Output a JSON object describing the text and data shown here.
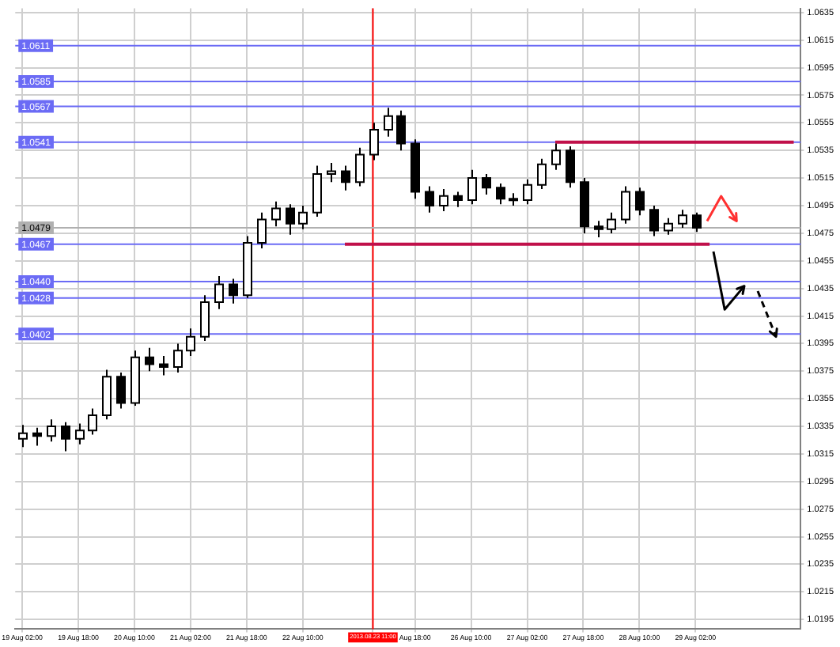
{
  "chart_data": {
    "type": "candlestick",
    "categories": [
      "19 Aug 02:00",
      null,
      null,
      null,
      "19 Aug 18:00",
      null,
      null,
      null,
      "20 Aug 10:00",
      null,
      null,
      null,
      "21 Aug 02:00",
      null,
      null,
      null,
      "21 Aug 18:00",
      null,
      null,
      null,
      "22 Aug 10:00",
      null,
      null,
      null,
      null,
      "2013.08.23 11:00",
      null,
      null,
      "Aug 18:00",
      null,
      null,
      null,
      "26 Aug 10:00",
      null,
      null,
      null,
      "27 Aug 02:00",
      null,
      null,
      null,
      "27 Aug 18:00",
      null,
      null,
      null,
      "28 Aug 10:00",
      null,
      null,
      null,
      "29 Aug 02:00",
      null,
      null,
      null,
      null,
      null,
      null,
      null
    ],
    "ohlc": [
      [
        1.0326,
        1.0336,
        1.032,
        1.033
      ],
      [
        1.033,
        1.0334,
        1.0321,
        1.0328
      ],
      [
        1.0328,
        1.034,
        1.0324,
        1.0335
      ],
      [
        1.0335,
        1.0338,
        1.0317,
        1.0326
      ],
      [
        1.0326,
        1.0337,
        1.0322,
        1.0332
      ],
      [
        1.0332,
        1.0348,
        1.0329,
        1.0343
      ],
      [
        1.0343,
        1.0376,
        1.034,
        1.0371
      ],
      [
        1.0371,
        1.0374,
        1.0348,
        1.0352
      ],
      [
        1.0352,
        1.039,
        1.035,
        1.0385
      ],
      [
        1.0385,
        1.0392,
        1.0375,
        1.038
      ],
      [
        1.038,
        1.0386,
        1.0372,
        1.0378
      ],
      [
        1.0378,
        1.0395,
        1.0374,
        1.039
      ],
      [
        1.039,
        1.0406,
        1.0386,
        1.04
      ],
      [
        1.04,
        1.043,
        1.0397,
        1.0425
      ],
      [
        1.0425,
        1.0444,
        1.042,
        1.0438
      ],
      [
        1.0438,
        1.0442,
        1.0424,
        1.043
      ],
      [
        1.043,
        1.0473,
        1.0428,
        1.0468
      ],
      [
        1.0468,
        1.049,
        1.0464,
        1.0485
      ],
      [
        1.0485,
        1.0498,
        1.048,
        1.0493
      ],
      [
        1.0493,
        1.0496,
        1.0474,
        1.0482
      ],
      [
        1.0482,
        1.0495,
        1.0478,
        1.049
      ],
      [
        1.049,
        1.0524,
        1.0487,
        1.0518
      ],
      [
        1.0518,
        1.0526,
        1.0512,
        1.052
      ],
      [
        1.052,
        1.0524,
        1.0506,
        1.0512
      ],
      [
        1.0512,
        1.0537,
        1.0509,
        1.0532
      ],
      [
        1.0532,
        1.0555,
        1.0528,
        1.055
      ],
      [
        1.055,
        1.0566,
        1.0545,
        1.056
      ],
      [
        1.056,
        1.0564,
        1.0535,
        1.054
      ],
      [
        1.054,
        1.0543,
        1.05,
        1.0505
      ],
      [
        1.0505,
        1.0509,
        1.049,
        1.0495
      ],
      [
        1.0495,
        1.0507,
        1.0491,
        1.0502
      ],
      [
        1.0502,
        1.0505,
        1.0494,
        1.0499
      ],
      [
        1.0499,
        1.0521,
        1.0496,
        1.0515
      ],
      [
        1.0515,
        1.0518,
        1.0503,
        1.0508
      ],
      [
        1.0508,
        1.0511,
        1.0496,
        1.05
      ],
      [
        1.05,
        1.0504,
        1.0495,
        1.0499
      ],
      [
        1.0499,
        1.0514,
        1.0496,
        1.051
      ],
      [
        1.051,
        1.0529,
        1.0507,
        1.0525
      ],
      [
        1.0525,
        1.054,
        1.0521,
        1.0535
      ],
      [
        1.0535,
        1.0538,
        1.0508,
        1.0512
      ],
      [
        1.0512,
        1.0515,
        1.0475,
        1.048
      ],
      [
        1.048,
        1.0484,
        1.0472,
        1.0478
      ],
      [
        1.0478,
        1.049,
        1.0475,
        1.0485
      ],
      [
        1.0485,
        1.0509,
        1.0482,
        1.0505
      ],
      [
        1.0505,
        1.0508,
        1.0488,
        1.0492
      ],
      [
        1.0492,
        1.0495,
        1.0473,
        1.0477
      ],
      [
        1.0477,
        1.0486,
        1.0474,
        1.0482
      ],
      [
        1.0482,
        1.0492,
        1.0479,
        1.0488
      ],
      [
        1.0488,
        1.049,
        1.0476,
        1.0479
      ],
      null,
      null,
      null,
      null,
      null,
      null,
      null
    ],
    "ylim": [
      1.0188,
      1.0638
    ],
    "yticks": [
      1.0195,
      1.0215,
      1.0235,
      1.0255,
      1.0275,
      1.0295,
      1.0315,
      1.0335,
      1.0355,
      1.0375,
      1.0395,
      1.0415,
      1.0435,
      1.0455,
      1.0475,
      1.0495,
      1.0515,
      1.0535,
      1.0555,
      1.0575,
      1.0595,
      1.0615,
      1.0635
    ],
    "grid": true,
    "ref_lines": [
      {
        "axis": "x",
        "value": "2013.08.23 11:00",
        "color": "#ff0000"
      },
      {
        "axis": "y",
        "value": 1.0611,
        "label": "1.0611",
        "color": "#6b6bf5"
      },
      {
        "axis": "y",
        "value": 1.0585,
        "label": "1.0585",
        "color": "#6b6bf5"
      },
      {
        "axis": "y",
        "value": 1.0567,
        "label": "1.0567",
        "color": "#6b6bf5"
      },
      {
        "axis": "y",
        "value": 1.0541,
        "label": "1.0541",
        "color": "#6b6bf5"
      },
      {
        "axis": "y",
        "value": 1.0479,
        "label": "1.0479",
        "color": "#b0b0b0"
      },
      {
        "axis": "y",
        "value": 1.0467,
        "label": "1.0467",
        "color": "#6b6bf5"
      },
      {
        "axis": "y",
        "value": 1.044,
        "label": "1.0440",
        "color": "#6b6bf5"
      },
      {
        "axis": "y",
        "value": 1.0428,
        "label": "1.0428",
        "color": "#6b6bf5"
      },
      {
        "axis": "y",
        "value": 1.0402,
        "label": "1.0402",
        "color": "#6b6bf5"
      }
    ],
    "series": [
      {
        "type": "line",
        "color": "#c0104a",
        "values": [
          null,
          null,
          null,
          null,
          null,
          null,
          null,
          null,
          null,
          null,
          null,
          null,
          null,
          null,
          null,
          null,
          null,
          null,
          null,
          null,
          null,
          null,
          null,
          null,
          null,
          null,
          null,
          null,
          null,
          null,
          null,
          null,
          null,
          null,
          null,
          null,
          null,
          null,
          1.0541,
          1.0541,
          1.0541,
          1.0541,
          1.0541,
          1.0541,
          1.0541,
          1.0541,
          1.0541,
          1.0541,
          1.0541,
          1.0541,
          1.0541,
          1.0541,
          1.0541,
          1.0541,
          1.0541,
          1.0541
        ]
      },
      {
        "type": "line",
        "color": "#c0104a",
        "values": [
          null,
          null,
          null,
          null,
          null,
          null,
          null,
          null,
          null,
          null,
          null,
          null,
          null,
          null,
          null,
          null,
          null,
          null,
          null,
          null,
          null,
          null,
          null,
          1.0467,
          1.0467,
          1.0467,
          1.0467,
          1.0467,
          1.0467,
          1.0467,
          1.0467,
          1.0467,
          1.0467,
          1.0467,
          1.0467,
          1.0467,
          1.0467,
          1.0467,
          1.0467,
          1.0467,
          1.0467,
          1.0467,
          1.0467,
          1.0467,
          1.0467,
          1.0467,
          1.0467,
          1.0467,
          1.0467,
          1.0467,
          null,
          null,
          null,
          null,
          null,
          null
        ]
      }
    ]
  }
}
